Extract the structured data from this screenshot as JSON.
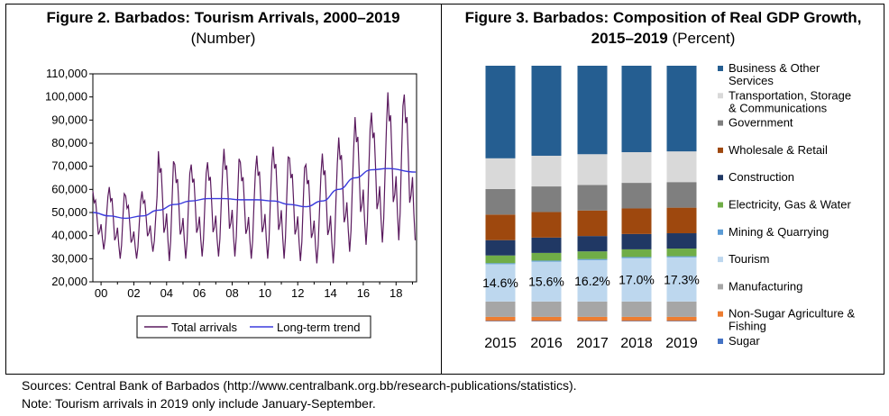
{
  "figure2": {
    "title": "Figure 2. Barbados: Tourism Arrivals, 2000–2019",
    "subtitle": "(Number)"
  },
  "figure3": {
    "title_line1": "Figure 3. Barbados: Composition of Real GDP Growth,",
    "title_line2": "2015–2019",
    "title_unit": "(Percent)"
  },
  "footer": {
    "sources": "Sources: Central Bank of Barbados (http://www.centralbank.org.bb/research-publications/statistics).",
    "note": "Note: Tourism arrivals in 2019 only include January-September."
  },
  "chart_data": [
    {
      "type": "line",
      "ylim": [
        20000,
        110000
      ],
      "y_ticks": [
        "20,000",
        "30,000",
        "40,000",
        "50,000",
        "60,000",
        "70,000",
        "80,000",
        "90,000",
        "100,000",
        "110,000"
      ],
      "x_ticks": [
        "00",
        "02",
        "04",
        "06",
        "08",
        "10",
        "12",
        "14",
        "16",
        "18"
      ],
      "grid": false,
      "legend_position": "bottom",
      "colors": {
        "total": "#5a1a5e",
        "trend": "#3b3bdd"
      },
      "series": [
        {
          "name": "Total arrivals",
          "years": [
            2000,
            2001,
            2002,
            2003,
            2004,
            2005,
            2006,
            2007,
            2008,
            2009,
            2010,
            2011,
            2012,
            2013,
            2014,
            2015,
            2016,
            2017,
            2018,
            2019
          ],
          "peak": [
            60000,
            62000,
            58000,
            60000,
            78000,
            72000,
            72000,
            73000,
            79000,
            73000,
            76000,
            80000,
            75000,
            72000,
            77000,
            84000,
            93000,
            95000,
            104000,
            103000
          ],
          "low": [
            34000,
            30000,
            30000,
            33000,
            29000,
            30000,
            31000,
            31000,
            31000,
            30000,
            30000,
            30000,
            29000,
            28000,
            28000,
            33000,
            36000,
            37000,
            38000,
            38000
          ]
        },
        {
          "name": "Long-term trend",
          "x": [
            2000,
            2001,
            2002,
            2003,
            2004,
            2005,
            2006,
            2007,
            2008,
            2009,
            2010,
            2011,
            2012,
            2013,
            2014,
            2015,
            2016,
            2017,
            2018,
            2019.7
          ],
          "values": [
            50000,
            48500,
            47500,
            48500,
            51000,
            53500,
            55000,
            56000,
            56000,
            55500,
            55500,
            55000,
            53500,
            52500,
            55000,
            60000,
            65000,
            68500,
            69000,
            67500
          ]
        }
      ]
    },
    {
      "type": "bar",
      "stacked": true,
      "categories": [
        "2015",
        "2016",
        "2017",
        "2018",
        "2019"
      ],
      "legend_position": "right",
      "series": [
        {
          "name": "Sugar",
          "color": "#4472c4",
          "values": [
            0.2,
            0.2,
            0.2,
            0.2,
            0.2
          ]
        },
        {
          "name": "Non-Sugar Agriculture & Fishing",
          "color": "#ed7d31",
          "values": [
            1.6,
            1.6,
            1.6,
            1.6,
            1.6
          ]
        },
        {
          "name": "Manufacturing",
          "color": "#a6a6a6",
          "values": [
            6.0,
            6.0,
            6.0,
            6.0,
            6.0
          ]
        },
        {
          "name": "Tourism",
          "color": "#bdd7ee",
          "values": [
            14.6,
            15.6,
            16.2,
            17.0,
            17.3
          ],
          "labels": [
            "14.6%",
            "15.6%",
            "16.2%",
            "17.0%",
            "17.3%"
          ]
        },
        {
          "name": "Mining & Quarrying",
          "color": "#5b9bd5",
          "values": [
            0.4,
            0.4,
            0.4,
            0.4,
            0.4
          ]
        },
        {
          "name": "Electricity, Gas & Water",
          "color": "#70ad47",
          "values": [
            3.0,
            3.0,
            3.0,
            3.0,
            3.0
          ]
        },
        {
          "name": "Construction",
          "color": "#203864",
          "values": [
            6.0,
            6.0,
            6.0,
            6.0,
            6.0
          ]
        },
        {
          "name": "Wholesale & Retail",
          "color": "#9e480e",
          "values": [
            10.0,
            10.0,
            10.0,
            10.0,
            10.0
          ]
        },
        {
          "name": "Government",
          "color": "#7f7f7f",
          "values": [
            10.0,
            10.0,
            10.0,
            10.0,
            10.0
          ]
        },
        {
          "name": "Transportation, Storage & Communications",
          "color": "#d9d9d9",
          "values": [
            12.0,
            12.0,
            12.0,
            12.0,
            12.0
          ]
        },
        {
          "name": "Business & Other Services",
          "color": "#255e91",
          "values": [
            36.2,
            35.2,
            34.6,
            33.8,
            33.5
          ]
        }
      ]
    }
  ]
}
